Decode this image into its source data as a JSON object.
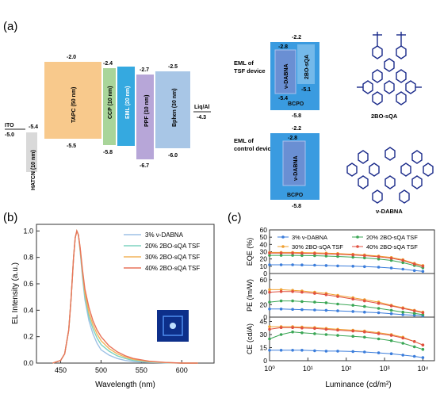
{
  "panel_labels": {
    "a": "(a)",
    "b": "(b)",
    "c": "(c)"
  },
  "energy_diagram": {
    "ito": {
      "name": "ITO",
      "work_function": "-5.0"
    },
    "layers": [
      {
        "name": "HATCN (10 nm)",
        "lumo": "",
        "homo": "-5.4",
        "color": "#d9d9d9"
      },
      {
        "name": "TAPC (50 nm)",
        "lumo": "-2.0",
        "homo": "-5.5",
        "color": "#f8c98c"
      },
      {
        "name": "CCP (10 nm)",
        "lumo": "-2.4",
        "homo": "-5.8",
        "color": "#a9d59a"
      },
      {
        "name": "EML (20 nm)",
        "lumo": "",
        "homo": "",
        "color": "#35a9e0"
      },
      {
        "name": "PPF (10 nm)",
        "lumo": "-2.7",
        "homo": "-6.7",
        "color": "#b7a6d8"
      },
      {
        "name": "Bphen (30 nm)",
        "lumo": "-2.5",
        "homo": "-6.0",
        "color": "#a8c6e6"
      }
    ],
    "cathode": {
      "name": "Liq/Al",
      "work_function": "-4.3"
    }
  },
  "eml_tsf": {
    "title_line1": "EML of",
    "title_line2": "TSF device",
    "host": "BCPO",
    "host_lumo": "-2.2",
    "host_homo": "-5.8",
    "dopant1": "ν-DABNA",
    "dopant1_lumo": "-2.8",
    "dopant1_homo": "-5.4",
    "dopant2": "2BO-sQA",
    "dopant2_homo": "-5.1"
  },
  "eml_control": {
    "title_line1": "EML of",
    "title_line2": "control device",
    "host": "BCPO",
    "host_lumo": "-2.2",
    "host_homo": "-5.8",
    "dopant1": "ν-DABNA",
    "dopant1_lumo": "-2.8"
  },
  "molecules": {
    "top": "2BO-sQA",
    "bottom": "ν-DABNA"
  },
  "colors": {
    "s1": "#9ec1e6",
    "s2": "#7ed3c0",
    "s3": "#f2b45a",
    "s4": "#e9745a",
    "c1": "#3b7ddb",
    "c2": "#3aa655",
    "c3": "#f0a030",
    "c4": "#e05040"
  },
  "chart_data": [
    {
      "type": "line",
      "xlabel": "Wavelength (nm)",
      "ylabel": "EL Intensity (a.u.)",
      "xlim": [
        420,
        640
      ],
      "ylim": [
        0,
        1.05
      ],
      "xticks": [
        450,
        500,
        550,
        600
      ],
      "yticks": [
        "0.0",
        "0.2",
        "0.4",
        "0.6",
        "0.8",
        "1.0"
      ],
      "legend": "top-right",
      "series": [
        {
          "name": "3% ν-DABNA",
          "x": [
            440,
            450,
            455,
            460,
            463,
            466,
            468,
            470,
            472,
            474,
            477,
            480,
            485,
            490,
            495,
            500,
            510,
            520,
            530,
            540,
            560,
            580,
            600,
            620
          ],
          "y": [
            0,
            0.02,
            0.07,
            0.25,
            0.5,
            0.8,
            0.95,
            1.0,
            0.97,
            0.85,
            0.65,
            0.48,
            0.32,
            0.22,
            0.15,
            0.1,
            0.06,
            0.035,
            0.02,
            0.012,
            0.005,
            0.002,
            0,
            0
          ]
        },
        {
          "name": "20% 2BO-sQA TSF",
          "x": [
            440,
            450,
            455,
            460,
            463,
            466,
            468,
            470,
            472,
            474,
            477,
            480,
            485,
            490,
            495,
            500,
            510,
            520,
            530,
            540,
            560,
            580,
            600,
            620
          ],
          "y": [
            0,
            0.02,
            0.07,
            0.25,
            0.5,
            0.8,
            0.95,
            1.0,
            0.97,
            0.86,
            0.67,
            0.5,
            0.35,
            0.26,
            0.19,
            0.14,
            0.09,
            0.055,
            0.035,
            0.02,
            0.008,
            0.003,
            0,
            0
          ]
        },
        {
          "name": "30% 2BO-sQA TSF",
          "x": [
            440,
            450,
            455,
            460,
            463,
            466,
            468,
            470,
            472,
            474,
            477,
            480,
            485,
            490,
            495,
            500,
            510,
            520,
            530,
            540,
            560,
            580,
            600,
            620
          ],
          "y": [
            0,
            0.02,
            0.07,
            0.25,
            0.5,
            0.8,
            0.95,
            1.0,
            0.97,
            0.87,
            0.69,
            0.53,
            0.38,
            0.29,
            0.22,
            0.17,
            0.11,
            0.07,
            0.045,
            0.028,
            0.011,
            0.004,
            0,
            0
          ]
        },
        {
          "name": "40% 2BO-sQA TSF",
          "x": [
            440,
            450,
            455,
            460,
            463,
            466,
            468,
            470,
            472,
            474,
            477,
            480,
            485,
            490,
            495,
            500,
            510,
            520,
            530,
            540,
            560,
            580,
            600,
            620
          ],
          "y": [
            0,
            0.02,
            0.07,
            0.25,
            0.5,
            0.8,
            0.95,
            1.0,
            0.97,
            0.88,
            0.71,
            0.56,
            0.42,
            0.32,
            0.25,
            0.2,
            0.13,
            0.085,
            0.055,
            0.035,
            0.014,
            0.005,
            0,
            0
          ]
        }
      ]
    },
    {
      "type": "line",
      "xlabel": "Luminance (cd/m²)",
      "xscale": "log",
      "xlim": [
        1,
        20000
      ],
      "xticks": [
        "10⁰",
        "10¹",
        "10²",
        "10³",
        "10⁴"
      ],
      "legend": "top",
      "series_names": [
        "3% ν-DABNA",
        "20% 2BO-sQA TSF",
        "30% 2BO-sQA TSF",
        "40% 2BO-sQA TSF"
      ],
      "subplots": [
        {
          "ylabel": "EQE (%)",
          "ylim": [
            0,
            60
          ],
          "yticks": [
            "0",
            "10",
            "20",
            "30",
            "40",
            "50",
            "60"
          ],
          "x": [
            1,
            2,
            4,
            7,
            15,
            30,
            60,
            150,
            300,
            700,
            1500,
            3000,
            6000,
            10000
          ],
          "series": [
            {
              "values": [
                12,
                12,
                12,
                11.8,
                11.5,
                11,
                10.5,
                10,
                9.5,
                8.7,
                7.5,
                6,
                4,
                3
              ]
            },
            {
              "values": [
                25,
                25,
                25,
                24.8,
                24.5,
                24,
                23.5,
                22.5,
                21.5,
                20,
                18,
                15,
                11,
                8
              ]
            },
            {
              "values": [
                29,
                29,
                29,
                28.8,
                28.5,
                28,
                27.5,
                26.5,
                25.5,
                24,
                22,
                19,
                14,
                11
              ]
            },
            {
              "values": [
                28,
                28,
                28,
                27.8,
                27.5,
                27,
                26.5,
                25.5,
                24.5,
                23,
                21,
                18,
                13,
                10
              ]
            }
          ]
        },
        {
          "ylabel": "PE (lm/W)",
          "ylim": [
            0,
            70
          ],
          "yticks": [
            "0",
            "20",
            "40",
            "60"
          ],
          "x": [
            1,
            2,
            4,
            7,
            15,
            30,
            60,
            150,
            300,
            700,
            1500,
            3000,
            6000,
            10000
          ],
          "series": [
            {
              "values": [
                13,
                13,
                12.5,
                12,
                11.5,
                11,
                10,
                9,
                8,
                7,
                5.5,
                4,
                3,
                2
              ]
            },
            {
              "values": [
                24,
                26,
                26,
                25,
                24,
                23,
                21,
                19,
                17,
                14,
                11,
                8,
                6,
                4
              ]
            },
            {
              "values": [
                44,
                44,
                43,
                42,
                40,
                38,
                35,
                31,
                28,
                24,
                19,
                15,
                11,
                8
              ]
            },
            {
              "values": [
                40,
                41,
                41,
                40,
                38,
                36,
                33,
                29,
                26,
                22,
                18,
                14,
                10,
                7
              ]
            }
          ]
        },
        {
          "ylabel": "CE (cd/A)",
          "ylim": [
            0,
            50
          ],
          "yticks": [
            "0",
            "15",
            "30",
            "45"
          ],
          "x": [
            1,
            2,
            4,
            7,
            15,
            30,
            60,
            150,
            300,
            700,
            1500,
            3000,
            6000,
            10000
          ],
          "series": [
            {
              "values": [
                12,
                12,
                12,
                12,
                11.5,
                11,
                11,
                10.5,
                10,
                9,
                8,
                6.5,
                5,
                3.5
              ]
            },
            {
              "values": [
                25,
                30,
                33,
                32,
                31,
                30,
                29,
                28,
                27,
                25,
                23,
                20,
                16,
                13
              ]
            },
            {
              "values": [
                39,
                39,
                39,
                38.5,
                38,
                37,
                36,
                35,
                34,
                32,
                30,
                27,
                22,
                18
              ]
            },
            {
              "values": [
                36,
                38,
                38,
                37.5,
                37,
                36,
                35,
                34,
                33,
                31,
                29,
                26,
                22,
                18
              ]
            }
          ]
        }
      ]
    }
  ]
}
